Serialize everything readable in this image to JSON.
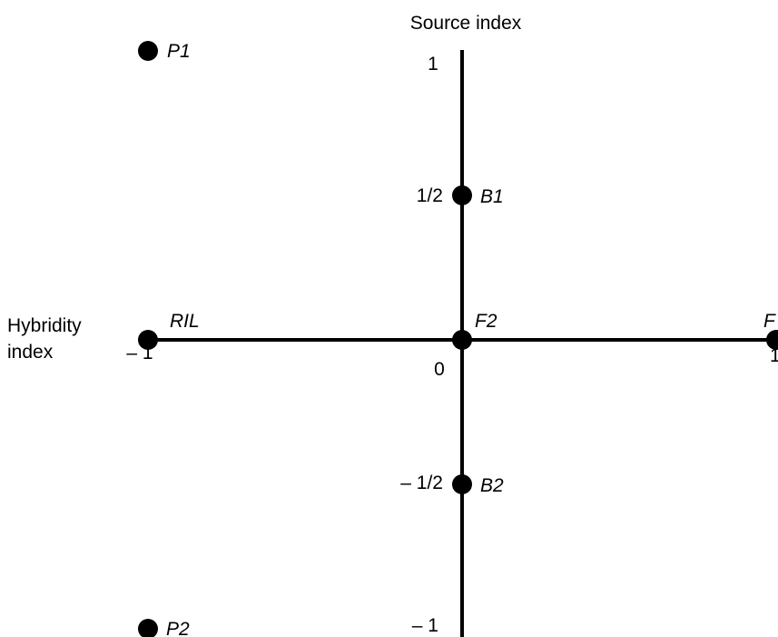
{
  "axes": {
    "y_title": "Source index",
    "x_title_line1": "Hybridity",
    "x_title_line2": "index",
    "ticks": {
      "y_top": "1",
      "y_half": "1/2",
      "origin": "0",
      "y_neg_half": "– 1/2",
      "y_bottom": "– 1",
      "x_left": "– 1",
      "x_right": "1"
    }
  },
  "points": [
    {
      "id": "P1",
      "label": "P1",
      "hybridity": -1,
      "source": 1
    },
    {
      "id": "B1",
      "label": "B1",
      "hybridity": 0,
      "source": 0.5
    },
    {
      "id": "RIL",
      "label": "RIL",
      "hybridity": -1,
      "source": 0
    },
    {
      "id": "F2",
      "label": "F2",
      "hybridity": 0,
      "source": 0
    },
    {
      "id": "F",
      "label": "F",
      "hybridity": 1,
      "source": 0
    },
    {
      "id": "B2",
      "label": "B2",
      "hybridity": 0,
      "source": -0.5
    },
    {
      "id": "P2",
      "label": "P2",
      "hybridity": -1,
      "source": -1
    }
  ],
  "colors": {
    "ink": "#000000",
    "background": "#ffffff"
  }
}
